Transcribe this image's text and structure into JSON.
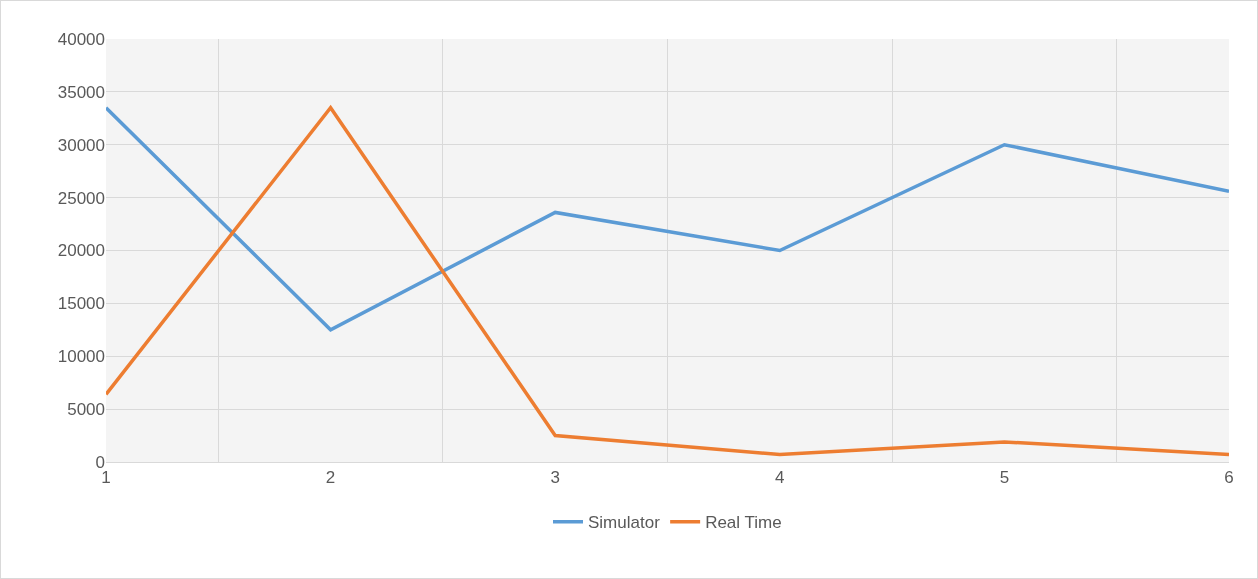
{
  "chart_data": {
    "type": "line",
    "categories": [
      "1",
      "2",
      "3",
      "4",
      "5",
      "6"
    ],
    "series": [
      {
        "name": "Simulator",
        "color": "#5b9bd5",
        "values": [
          33500,
          12500,
          23600,
          20000,
          30000,
          25600
        ]
      },
      {
        "name": "Real Time",
        "color": "#ed7d31",
        "values": [
          6400,
          33500,
          2500,
          700,
          1900,
          700
        ]
      }
    ],
    "ylim": [
      0,
      40000
    ],
    "yticks": [
      0,
      5000,
      10000,
      15000,
      20000,
      25000,
      30000,
      35000,
      40000
    ],
    "grid": true,
    "legend": "bottom",
    "marker": "none",
    "line_style": "solid"
  }
}
